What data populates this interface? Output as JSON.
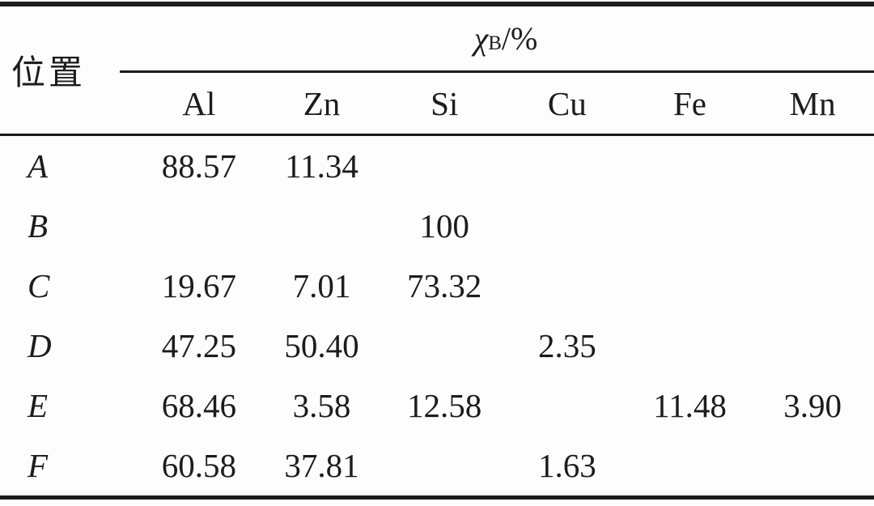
{
  "table": {
    "row_header": "位置",
    "span_header": {
      "symbol": "χ",
      "subscript": "B",
      "suffix": "/%"
    },
    "columns": [
      "Al",
      "Zn",
      "Si",
      "Cu",
      "Fe",
      "Mn"
    ],
    "rows": [
      {
        "label": "A",
        "values": [
          "88.57",
          "11.34",
          "",
          "",
          "",
          ""
        ]
      },
      {
        "label": "B",
        "values": [
          "",
          "",
          "100",
          "",
          "",
          ""
        ]
      },
      {
        "label": "C",
        "values": [
          "19.67",
          "7.01",
          "73.32",
          "",
          "",
          ""
        ]
      },
      {
        "label": "D",
        "values": [
          "47.25",
          "50.40",
          "",
          "2.35",
          "",
          ""
        ]
      },
      {
        "label": "E",
        "values": [
          "68.46",
          "3.58",
          "12.58",
          "",
          "11.48",
          "3.90"
        ]
      },
      {
        "label": "F",
        "values": [
          "60.58",
          "37.81",
          "",
          "1.63",
          "",
          ""
        ]
      }
    ]
  },
  "colors": {
    "text": "#1c1c1c",
    "rule": "#1c1c1c",
    "background": "#fdfdfd"
  }
}
